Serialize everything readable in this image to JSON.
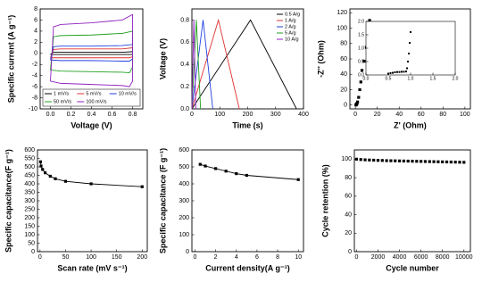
{
  "chart_data": [
    {
      "type": "line",
      "xlabel": "Voltage (V)",
      "ylabel": "Specific current (A g⁻¹)",
      "x": [
        0,
        0.03,
        0.1,
        0.4,
        0.7,
        0.8,
        0.8,
        0.77,
        0.7,
        0.4,
        0.1,
        0
      ],
      "series": [
        {
          "name": "1 mV/s",
          "color": "#000000",
          "values": [
            -0.2,
            0.2,
            0.2,
            0.2,
            0.2,
            0.3,
            -0.2,
            -0.2,
            -0.2,
            -0.2,
            -0.2,
            -0.2
          ]
        },
        {
          "name": "5 mV/s",
          "color": "#e03030",
          "values": [
            -0.8,
            0.7,
            0.8,
            0.8,
            0.8,
            1,
            -0.6,
            -0.8,
            -0.8,
            -0.8,
            -0.8,
            -0.8
          ]
        },
        {
          "name": "10 mV/s",
          "color": "#2040e0",
          "values": [
            -1.2,
            1.2,
            1.3,
            1.3,
            1.4,
            1.6,
            -1,
            -1.4,
            -1.4,
            -1.3,
            -1.3,
            -1.2
          ]
        },
        {
          "name": "50 mV/s",
          "color": "#20a020",
          "values": [
            -3,
            3,
            3.2,
            3.3,
            3.6,
            4,
            -2.5,
            -3.5,
            -3.4,
            -3.3,
            -3.2,
            -3
          ]
        },
        {
          "name": "100 mV/s",
          "color": "#9020c0",
          "values": [
            -5,
            4.8,
            5.2,
            5.5,
            6,
            7,
            -5,
            -6,
            -5.8,
            -5.6,
            -5.4,
            -5
          ]
        }
      ],
      "xlim": [
        -0.1,
        0.9
      ],
      "ylim": [
        -10,
        8
      ],
      "xticks": [
        {
          "value": 0,
          "label": "0.0"
        },
        {
          "value": 0.2,
          "label": "0.2"
        },
        {
          "value": 0.4,
          "label": "0.4"
        },
        {
          "value": 0.6,
          "label": "0.6"
        },
        {
          "value": 0.8,
          "label": "0.8"
        }
      ],
      "yticks": [
        -10,
        -8,
        -6,
        -4,
        -2,
        0,
        2,
        4,
        6,
        8
      ],
      "legend": "lower center"
    },
    {
      "type": "line",
      "xlabel": "Time (s)",
      "ylabel": "Voltage (V)",
      "series": [
        {
          "name": "0.5 A/g",
          "color": "#000000",
          "x": [
            0,
            210,
            375
          ],
          "values": [
            0,
            0.8,
            0
          ]
        },
        {
          "name": "1 A/g",
          "color": "#e03030",
          "x": [
            0,
            95,
            170
          ],
          "values": [
            0,
            0.8,
            0
          ]
        },
        {
          "name": "2 A/g",
          "color": "#2040e0",
          "x": [
            0,
            40,
            75
          ],
          "values": [
            0,
            0.8,
            0
          ]
        },
        {
          "name": "5 A/g",
          "color": "#20a020",
          "x": [
            0,
            16,
            31
          ],
          "values": [
            0,
            0.8,
            0
          ]
        },
        {
          "name": "10 A/g",
          "color": "#9020c0",
          "x": [
            0,
            7,
            14
          ],
          "values": [
            0,
            0.8,
            0
          ]
        }
      ],
      "xlim": [
        0,
        400
      ],
      "ylim": [
        0,
        0.9
      ],
      "xticks": [
        0,
        100,
        200,
        300,
        400
      ],
      "yticks": [
        {
          "value": 0,
          "label": "0.0"
        },
        {
          "value": 0.2,
          "label": "0.2"
        },
        {
          "value": 0.4,
          "label": "0.4"
        },
        {
          "value": 0.6,
          "label": "0.6"
        },
        {
          "value": 0.8,
          "label": "0.8"
        }
      ],
      "legend": "upper right"
    },
    {
      "type": "scatter",
      "xlabel": "Z' (Ohm)",
      "ylabel": "-Z'' (Ohm)",
      "color": "#000000",
      "x": [
        0.5,
        0.8,
        1,
        1.2,
        1.5,
        2,
        3,
        4,
        5,
        6,
        8,
        10,
        13
      ],
      "values": [
        0,
        0.5,
        1,
        1.5,
        2,
        4,
        10,
        20,
        30,
        45,
        57,
        75,
        110
      ],
      "xlim": [
        -5,
        105
      ],
      "ylim": [
        -5,
        125
      ],
      "xticks": [
        0,
        20,
        40,
        60,
        80,
        100
      ],
      "yticks": [
        0,
        20,
        40,
        60,
        80,
        100,
        120
      ]
    },
    {
      "type": "scatter",
      "color": "#000000",
      "x": [
        0.5,
        0.55,
        0.6,
        0.65,
        0.7,
        0.75,
        0.8,
        0.85,
        0.9,
        0.92,
        0.94,
        0.96,
        0.98,
        1.0
      ],
      "values": [
        0.05,
        0.07,
        0.08,
        0.1,
        0.11,
        0.11,
        0.12,
        0.12,
        0.13,
        0.25,
        0.5,
        0.8,
        1.2,
        1.6
      ],
      "xlim": [
        0,
        2
      ],
      "ylim": [
        0,
        2
      ],
      "xticks": [
        {
          "value": 0,
          "label": "0.0"
        },
        {
          "value": 0.5,
          "label": "0.5"
        },
        {
          "value": 1,
          "label": "1.0"
        },
        {
          "value": 1.5,
          "label": "1.5"
        },
        {
          "value": 2,
          "label": "2.0"
        }
      ],
      "yticks": [
        {
          "value": 0,
          "label": "0.0"
        },
        {
          "value": 0.5,
          "label": "0.5"
        },
        {
          "value": 1,
          "label": "1.0"
        },
        {
          "value": 1.5,
          "label": "1.5"
        },
        {
          "value": 2,
          "label": "2.0"
        }
      ]
    },
    {
      "type": "line",
      "markers": true,
      "xlabel": "Scan rate (mV s⁻¹)",
      "ylabel": "Specific capacitance(F g⁻¹)",
      "color": "#000000",
      "x": [
        1,
        2,
        5,
        10,
        20,
        30,
        50,
        100,
        200
      ],
      "values": [
        530,
        505,
        485,
        465,
        445,
        430,
        415,
        400,
        383
      ],
      "xlim": [
        -5,
        210
      ],
      "ylim": [
        0,
        600
      ],
      "xticks": [
        0,
        50,
        100,
        150,
        200
      ],
      "yticks": [
        0,
        50,
        100,
        150,
        200,
        250,
        300,
        350,
        400,
        450,
        500,
        550,
        600
      ]
    },
    {
      "type": "line",
      "markers": true,
      "xlabel": "Current density(A g⁻¹)",
      "ylabel": "Specific capacitance (F g⁻¹)",
      "color": "#000000",
      "x": [
        0.5,
        1,
        2,
        3,
        4,
        5,
        10
      ],
      "values": [
        515,
        505,
        490,
        475,
        460,
        450,
        425
      ],
      "xlim": [
        -0.3,
        10.5
      ],
      "ylim": [
        0,
        600
      ],
      "xticks": [
        0,
        2,
        4,
        6,
        8,
        10
      ],
      "yticks": [
        0,
        100,
        200,
        300,
        400,
        500,
        600
      ]
    },
    {
      "type": "scatter",
      "xlabel": "Cycle number",
      "ylabel": "Cycle retention (%)",
      "color": "#000000",
      "x": [
        0,
        400,
        800,
        1200,
        1600,
        2000,
        2400,
        2800,
        3200,
        3600,
        4000,
        4400,
        4800,
        5200,
        5600,
        6000,
        6400,
        6800,
        7200,
        7600,
        8000,
        8400,
        8800,
        9200,
        9600,
        10000
      ],
      "values": [
        100,
        99.6,
        99.3,
        99.1,
        98.9,
        98.7,
        98.6,
        98.4,
        98.3,
        98.2,
        98.1,
        98,
        97.9,
        97.8,
        97.7,
        97.6,
        97.5,
        97.4,
        97.3,
        97.2,
        97.1,
        97,
        96.9,
        96.8,
        96.7,
        96.6
      ],
      "xlim": [
        -200,
        10600
      ],
      "ylim": [
        0,
        110
      ],
      "xticks": [
        0,
        2000,
        4000,
        6000,
        8000,
        10000
      ],
      "yticks": [
        0,
        20,
        40,
        60,
        80,
        100
      ]
    }
  ]
}
